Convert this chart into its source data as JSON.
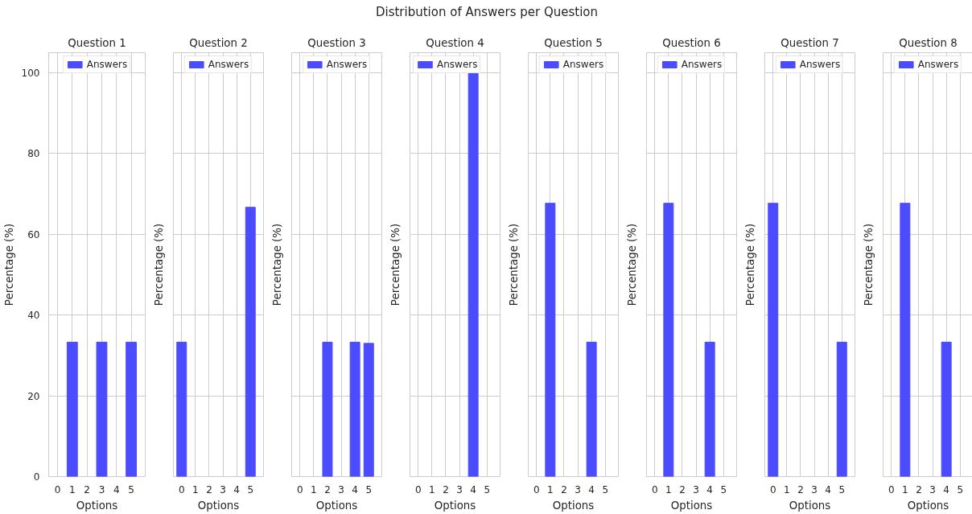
{
  "chart_data": [
    {
      "type": "other",
      "title": "Distribution of Answers per Question"
    },
    {
      "type": "bar",
      "title": "Question 1",
      "xlabel": "Options",
      "ylabel": "Percentage (%)",
      "series": [
        {
          "name": "Answers",
          "color": "#4b4bff",
          "x": [
            1,
            3,
            5
          ],
          "values": [
            33.3,
            33.3,
            33.3
          ]
        }
      ],
      "xlim": [
        -0.6,
        5.95
      ],
      "xticks": [
        0,
        1,
        2,
        3,
        4,
        5
      ],
      "ylim": [
        0,
        105
      ],
      "yticks": [
        0,
        20,
        40,
        60,
        80,
        100
      ],
      "grid": true,
      "legend": "top"
    },
    {
      "type": "bar",
      "title": "Question 2",
      "xlabel": "Options",
      "ylabel": "Percentage (%)",
      "series": [
        {
          "name": "Answers",
          "color": "#4b4bff",
          "x": [
            0,
            5
          ],
          "values": [
            33.3,
            66.7
          ]
        }
      ],
      "xlim": [
        -0.6,
        5.95
      ],
      "xticks": [
        0,
        1,
        2,
        3,
        4,
        5
      ],
      "ylim": [
        0,
        105
      ],
      "yticks": [
        0,
        20,
        40,
        60,
        80,
        100
      ],
      "grid": true,
      "legend": "top",
      "tick_labels": "x"
    },
    {
      "type": "bar",
      "title": "Question 3",
      "xlabel": "Options",
      "ylabel": "Percentage (%)",
      "series": [
        {
          "name": "Answers",
          "color": "#4b4bff",
          "x": [
            2,
            4,
            5
          ],
          "values": [
            33.3,
            33.3,
            33.0
          ]
        }
      ],
      "xlim": [
        -0.6,
        5.95
      ],
      "xticks": [
        0,
        1,
        2,
        3,
        4,
        5
      ],
      "ylim": [
        0,
        105
      ],
      "yticks": [
        0,
        20,
        40,
        60,
        80,
        100
      ],
      "grid": true,
      "legend": "top",
      "tick_labels": "x"
    },
    {
      "type": "bar",
      "title": "Question 4",
      "xlabel": "Options",
      "ylabel": "Percentage (%)",
      "series": [
        {
          "name": "Answers",
          "color": "#4b4bff",
          "x": [
            4
          ],
          "values": [
            100
          ]
        }
      ],
      "xlim": [
        -0.6,
        5.95
      ],
      "xticks": [
        0,
        1,
        2,
        3,
        4,
        5
      ],
      "ylim": [
        0,
        105
      ],
      "yticks": [
        0,
        20,
        40,
        60,
        80,
        100
      ],
      "grid": true,
      "legend": "top left",
      "tick_labels": "x"
    },
    {
      "type": "bar",
      "title": "Question 5",
      "xlabel": "Options",
      "ylabel": "Percentage (%)",
      "series": [
        {
          "name": "Answers",
          "color": "#4b4bff",
          "x": [
            1,
            4
          ],
          "values": [
            67.7,
            33.3
          ]
        }
      ],
      "xlim": [
        -0.6,
        5.95
      ],
      "xticks": [
        0,
        1,
        2,
        3,
        4,
        5
      ],
      "ylim": [
        0,
        105
      ],
      "yticks": [
        0,
        20,
        40,
        60,
        80,
        100
      ],
      "grid": true,
      "legend": "top",
      "tick_labels": "x"
    },
    {
      "type": "bar",
      "title": "Question 6",
      "xlabel": "Options",
      "ylabel": "Percentage (%)",
      "series": [
        {
          "name": "Answers",
          "color": "#4b4bff",
          "x": [
            1,
            4
          ],
          "values": [
            67.7,
            33.3
          ]
        }
      ],
      "xlim": [
        -0.6,
        5.95
      ],
      "xticks": [
        0,
        1,
        2,
        3,
        4,
        5
      ],
      "ylim": [
        0,
        105
      ],
      "yticks": [
        0,
        20,
        40,
        60,
        80,
        100
      ],
      "grid": true,
      "legend": "top",
      "tick_labels": "x"
    },
    {
      "type": "bar",
      "title": "Question 7",
      "xlabel": "Options",
      "ylabel": "Percentage (%)",
      "series": [
        {
          "name": "Answers",
          "color": "#4b4bff",
          "x": [
            0,
            5
          ],
          "values": [
            67.7,
            33.3
          ]
        }
      ],
      "xlim": [
        -0.6,
        5.95
      ],
      "xticks": [
        0,
        1,
        2,
        3,
        4,
        5
      ],
      "ylim": [
        0,
        105
      ],
      "yticks": [
        0,
        20,
        40,
        60,
        80,
        100
      ],
      "grid": true,
      "legend": "top",
      "tick_labels": "x"
    },
    {
      "type": "bar",
      "title": "Question 8",
      "xlabel": "Options",
      "ylabel": "Percentage (%)",
      "series": [
        {
          "name": "Answers",
          "color": "#4b4bff",
          "x": [
            1,
            4
          ],
          "values": [
            67.7,
            33.3
          ]
        }
      ],
      "xlim": [
        -0.6,
        5.95
      ],
      "xticks": [
        0,
        1,
        2,
        3,
        4,
        5
      ],
      "ylim": [
        0,
        105
      ],
      "yticks": [
        0,
        20,
        40,
        60,
        80,
        100
      ],
      "grid": true,
      "legend": "top",
      "tick_labels": "x"
    }
  ]
}
